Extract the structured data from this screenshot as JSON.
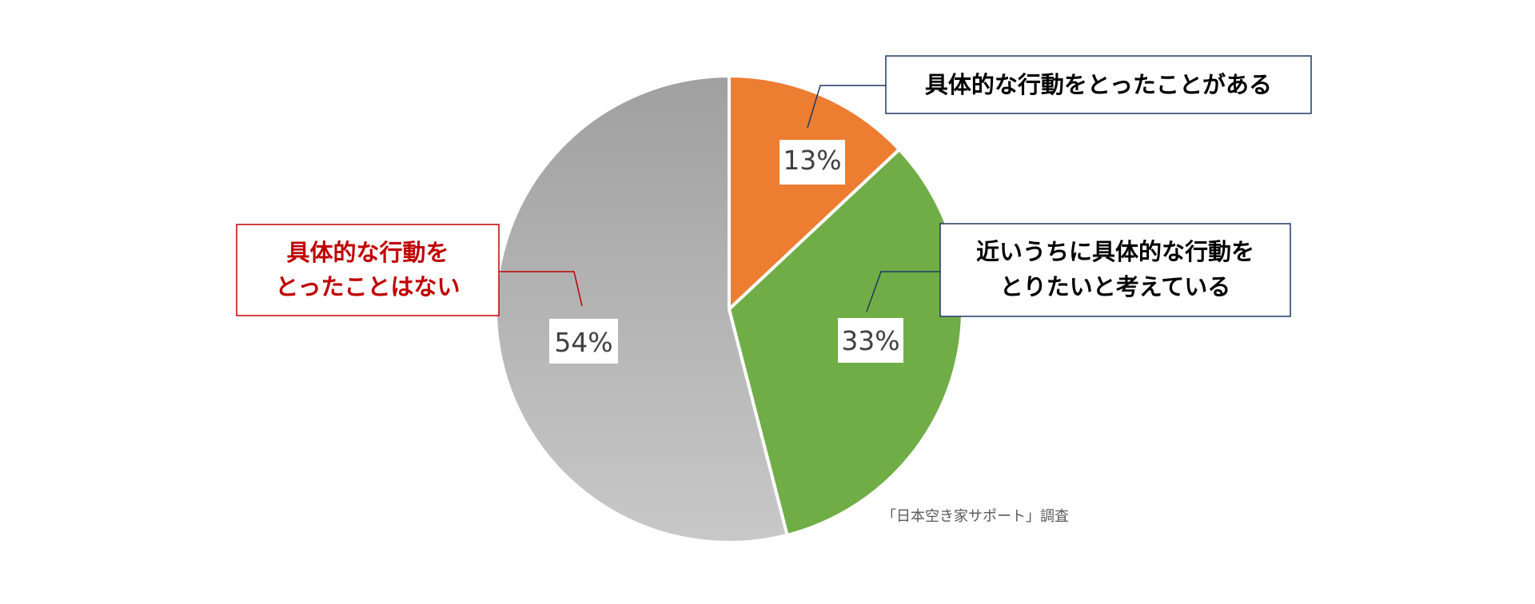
{
  "chart_data": {
    "type": "pie",
    "title": "",
    "start_angle_deg": 0,
    "direction": "clockwise",
    "colors": {
      "slice_border": "#ffffff",
      "label_box_border_dark": "#1f3864",
      "label_box_border_red": "#c00000",
      "label_text_dark": "#000000",
      "label_text_red": "#c00000",
      "leader_dark": "#1f3864",
      "leader_red": "#c00000"
    },
    "slices": [
      {
        "name": "具体的な行動をとったことがある",
        "name_lines": [
          "具体的な行動をとったことがある"
        ],
        "value": 13,
        "value_label": "13%",
        "color": "#ed7d31",
        "gradient": null,
        "label_style": "dark"
      },
      {
        "name": "近いうちに具体的な行動をとりたいと考えている",
        "name_lines": [
          "近いうちに具体的な行動を",
          "とりたいと考えている"
        ],
        "value": 33,
        "value_label": "33%",
        "color": "#70ad47",
        "gradient": null,
        "label_style": "dark"
      },
      {
        "name": "具体的な行動をとったことはない",
        "name_lines": [
          "具体的な行動を",
          "とったことはない"
        ],
        "value": 54,
        "value_label": "54%",
        "color": "#b3b3b3",
        "gradient": [
          "#a0a0a0",
          "#c8c8c8"
        ],
        "label_style": "red"
      }
    ],
    "source_note": "「日本空き家サポート」調査"
  }
}
